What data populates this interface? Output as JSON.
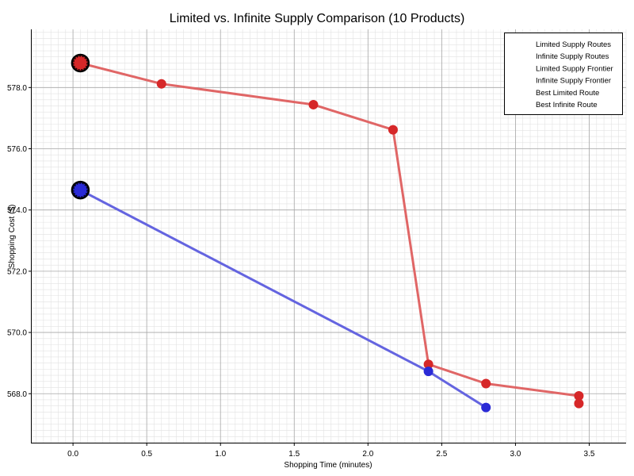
{
  "chart_data": {
    "type": "scatter",
    "title": "Limited vs. Infinite Supply Comparison (10 Products)",
    "xlabel": "Shopping Time (minutes)",
    "ylabel": "Shopping Cost ($)",
    "xlim": [
      -0.28,
      3.75
    ],
    "ylim": [
      566.4,
      579.9
    ],
    "x_ticks": [
      0.0,
      0.5,
      1.0,
      1.5,
      2.0,
      2.5,
      3.0,
      3.5
    ],
    "x_tick_labels": [
      "0.0",
      "0.5",
      "1.0",
      "1.5",
      "2.0",
      "2.5",
      "3.0",
      "3.5"
    ],
    "y_ticks": [
      568,
      570,
      572,
      574,
      576,
      578
    ],
    "y_tick_labels": [
      "568.0",
      "570.0",
      "572.0",
      "574.0",
      "576.0",
      "578.0"
    ],
    "grid": true,
    "legend_position": "top-right",
    "legend": [
      "Limited Supply Routes",
      "Infinite Supply Routes",
      "Limited Supply Frontier",
      "Infinite Supply Frontier",
      "Best Limited Route",
      "Best Infinite Route"
    ],
    "series": [
      {
        "name": "Limited Supply Routes",
        "kind": "points",
        "color": "#d62728",
        "points": [
          {
            "x": 0.05,
            "y": 578.8
          },
          {
            "x": 0.6,
            "y": 578.12
          },
          {
            "x": 1.63,
            "y": 577.44
          },
          {
            "x": 2.17,
            "y": 576.62
          },
          {
            "x": 2.41,
            "y": 568.96
          },
          {
            "x": 2.8,
            "y": 568.33
          },
          {
            "x": 3.43,
            "y": 567.93
          },
          {
            "x": 3.43,
            "y": 567.68
          }
        ]
      },
      {
        "name": "Infinite Supply Routes",
        "kind": "points",
        "color": "#2a2ad6",
        "points": [
          {
            "x": 0.05,
            "y": 574.65
          },
          {
            "x": 2.41,
            "y": 568.73
          },
          {
            "x": 2.8,
            "y": 567.55
          }
        ]
      },
      {
        "name": "Limited Supply Frontier",
        "kind": "line",
        "color": "#e06666",
        "points": [
          {
            "x": 0.05,
            "y": 578.8
          },
          {
            "x": 0.6,
            "y": 578.12
          },
          {
            "x": 1.63,
            "y": 577.44
          },
          {
            "x": 2.17,
            "y": 576.62
          },
          {
            "x": 2.41,
            "y": 568.96
          },
          {
            "x": 2.8,
            "y": 568.33
          },
          {
            "x": 3.43,
            "y": 567.93
          }
        ]
      },
      {
        "name": "Infinite Supply Frontier",
        "kind": "line",
        "color": "#6464e0",
        "points": [
          {
            "x": 0.05,
            "y": 574.65
          },
          {
            "x": 2.41,
            "y": 568.73
          },
          {
            "x": 2.8,
            "y": 567.55
          }
        ]
      },
      {
        "name": "Best Limited Route",
        "kind": "highlight",
        "color": "#d62728",
        "points": [
          {
            "x": 0.05,
            "y": 578.8
          }
        ]
      },
      {
        "name": "Best Infinite Route",
        "kind": "highlight",
        "color": "#2a2ad6",
        "points": [
          {
            "x": 0.05,
            "y": 574.65
          }
        ]
      }
    ]
  }
}
